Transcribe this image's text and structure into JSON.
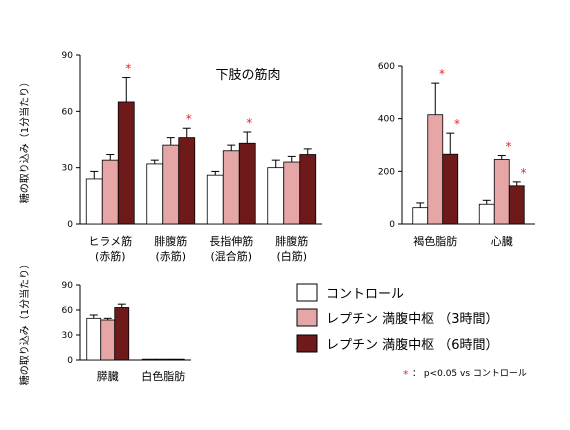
{
  "ylabel": "糖の取り込み（1分当たり）",
  "colors": {
    "control": "#ffffff",
    "leptin3h": "#e6a6a6",
    "leptin6h": "#6e1a1a",
    "star": "#e8262b",
    "axis": "#000000"
  },
  "legend": [
    {
      "label": "コントロール",
      "key": "control"
    },
    {
      "label": "レプチン 満腹中枢 （3時間）",
      "key": "leptin3h"
    },
    {
      "label": "レプチン 満腹中枢 （6時間）",
      "key": "leptin6h"
    }
  ],
  "footnote": {
    "star": "*",
    "text": "： p<0.05 vs コントロール"
  },
  "chart_data": [
    {
      "type": "bar",
      "title": "下肢の筋肉",
      "ylabel": "糖の取り込み（1分当たり）",
      "ylim": [
        0,
        90
      ],
      "yticks": [
        "0",
        "30",
        "60",
        "90"
      ],
      "categories": [
        {
          "name": "ヒラメ筋",
          "sub": "(赤筋)"
        },
        {
          "name": "腓腹筋",
          "sub": "(赤筋)"
        },
        {
          "name": "長指伸筋",
          "sub": "(混合筋)"
        },
        {
          "name": "腓腹筋",
          "sub": "(白筋)"
        }
      ],
      "series": [
        {
          "name": "コントロール",
          "key": "control",
          "values": [
            24,
            32,
            26,
            30
          ],
          "errors": [
            4,
            2,
            2,
            4
          ],
          "significant": [
            false,
            false,
            false,
            false
          ]
        },
        {
          "name": "レプチン 満腹中枢 （3時間）",
          "key": "leptin3h",
          "values": [
            34,
            42,
            39,
            33
          ],
          "errors": [
            3,
            4,
            3,
            3
          ],
          "significant": [
            false,
            false,
            false,
            false
          ]
        },
        {
          "name": "レプチン 満腹中枢 （6時間）",
          "key": "leptin6h",
          "values": [
            65,
            46,
            43,
            37
          ],
          "errors": [
            13,
            5,
            6,
            3
          ],
          "significant": [
            true,
            true,
            true,
            false
          ]
        }
      ]
    },
    {
      "type": "bar",
      "title": "",
      "ylim": [
        0,
        600
      ],
      "yticks": [
        "0",
        "200",
        "400",
        "600"
      ],
      "categories": [
        {
          "name": "褐色脂肪",
          "sub": ""
        },
        {
          "name": "心臓",
          "sub": ""
        }
      ],
      "series": [
        {
          "name": "コントロール",
          "key": "control",
          "values": [
            62,
            75
          ],
          "errors": [
            18,
            15
          ],
          "significant": [
            false,
            false
          ]
        },
        {
          "name": "レプチン 満腹中枢 （3時間）",
          "key": "leptin3h",
          "values": [
            415,
            245
          ],
          "errors": [
            120,
            15
          ],
          "significant": [
            true,
            true
          ]
        },
        {
          "name": "レプチン 満腹中枢 （6時間）",
          "key": "leptin6h",
          "values": [
            265,
            145
          ],
          "errors": [
            80,
            15
          ],
          "significant": [
            true,
            true
          ]
        }
      ]
    },
    {
      "type": "bar",
      "title": "",
      "ylabel": "糖の取り込み（1分当たり）",
      "ylim": [
        0,
        90
      ],
      "yticks": [
        "0",
        "30",
        "60",
        "90"
      ],
      "categories": [
        {
          "name": "膵臓",
          "sub": ""
        },
        {
          "name": "白色脂肪",
          "sub": ""
        }
      ],
      "series": [
        {
          "name": "コントロール",
          "key": "control",
          "values": [
            50,
            1
          ],
          "errors": [
            4,
            0.5
          ],
          "significant": [
            false,
            false
          ]
        },
        {
          "name": "レプチン 満腹中枢 （3時間）",
          "key": "leptin3h",
          "values": [
            48,
            1
          ],
          "errors": [
            2,
            0.5
          ],
          "significant": [
            false,
            false
          ]
        },
        {
          "name": "レプチン 満腹中枢 （6時間）",
          "key": "leptin6h",
          "values": [
            63,
            1
          ],
          "errors": [
            4,
            0.5
          ],
          "significant": [
            false,
            false
          ]
        }
      ]
    }
  ]
}
